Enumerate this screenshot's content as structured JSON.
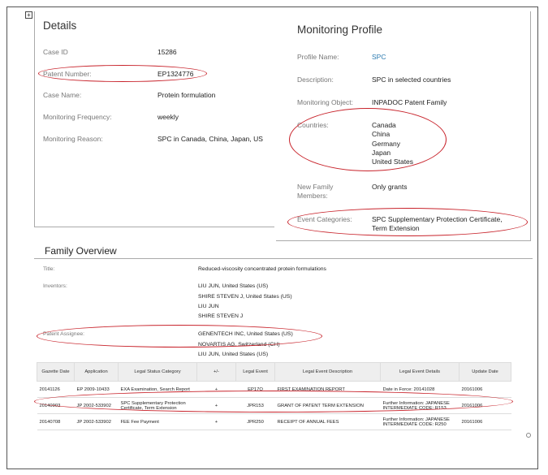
{
  "details": {
    "title": "Details",
    "fields": [
      {
        "label": "Case ID",
        "value": "15286"
      },
      {
        "label": "Patent Number:",
        "value": "EP1324776"
      },
      {
        "label": "Case Name:",
        "value": "Protein formulation"
      },
      {
        "label": "Monitoring Frequency:",
        "value": "weekly"
      },
      {
        "label": "Monitoring Reason:",
        "value": "SPC in Canada, China, Japan, US"
      }
    ]
  },
  "monitoring": {
    "title": "Monitoring Profile",
    "profile_name_label": "Profile Name:",
    "profile_name_value": "SPC",
    "description_label": "Description:",
    "description_value": "SPC in selected countries",
    "object_label": "Monitoring Object:",
    "object_value": "INPADOC Patent Family",
    "countries_label": "Countries:",
    "countries": [
      "Canada",
      "China",
      "Germany",
      "Japan",
      "United States"
    ],
    "new_family_label_1": "New Family",
    "new_family_label_2": "Members:",
    "new_family_value": "Only grants",
    "event_categories_label": "Event Categories:",
    "event_categories_value_1": "SPC Supplementary Protection Certificate,",
    "event_categories_value_2": "Term Extension"
  },
  "family": {
    "title": "Family Overview",
    "title_label": "Title:",
    "title_value": "Reduced-viscosity concentrated protein formulations",
    "inventors_label": "Inventors:",
    "inventors": [
      "LIU JUN, United States (US)",
      "SHIRE STEVEN J, United States (US)",
      "LIU JUN",
      "SHIRE STEVEN J"
    ],
    "assignee_label": "Patent Assignee:",
    "assignees": [
      "GENENTECH INC, United States (US)",
      "NOVARTIS AG, Switzerland (CH)",
      "LIU JUN, United States (US)"
    ]
  },
  "events": {
    "headers": [
      "Gazette Date",
      "Application",
      "Legal Status Category",
      "+/-",
      "Legal Event",
      "Legal Event Description",
      "Legal Event Details",
      "Update Date"
    ],
    "rows": [
      {
        "gazette_date": "20141126",
        "application": "EP 2009-10433",
        "category_1": "EXA Examination, Search Report",
        "category_2": "",
        "sign": "+",
        "event": "EP17Q",
        "description": "FIRST EXAMINATION REPORT",
        "details_1": "Date in Force: 20141028",
        "details_2": "",
        "update_date": "20161006"
      },
      {
        "gazette_date": "20140903",
        "application": "JP 2002-533902",
        "category_1": "SPC Supplementary Protection",
        "category_2": "Certificate, Term Extension",
        "sign": "+",
        "event": "JPR153",
        "description": "GRANT OF PATENT TERM EXTENSION",
        "details_1": "Further Information: JAPANESE",
        "details_2": "INTERMEDIATE CODE: R153",
        "update_date": "20161006"
      },
      {
        "gazette_date": "20140708",
        "application": "JP 2002-533902",
        "category_1": "FEE Fee Payment",
        "category_2": "",
        "sign": "+",
        "event": "JPR250",
        "description": "RECEIPT OF ANNUAL FEES",
        "details_1": "Further Information: JAPANESE",
        "details_2": "INTERMEDIATE CODE: R250",
        "update_date": "20161006"
      }
    ]
  },
  "colors": {
    "highlight": "#c8232b",
    "link": "#2a7ab0"
  }
}
